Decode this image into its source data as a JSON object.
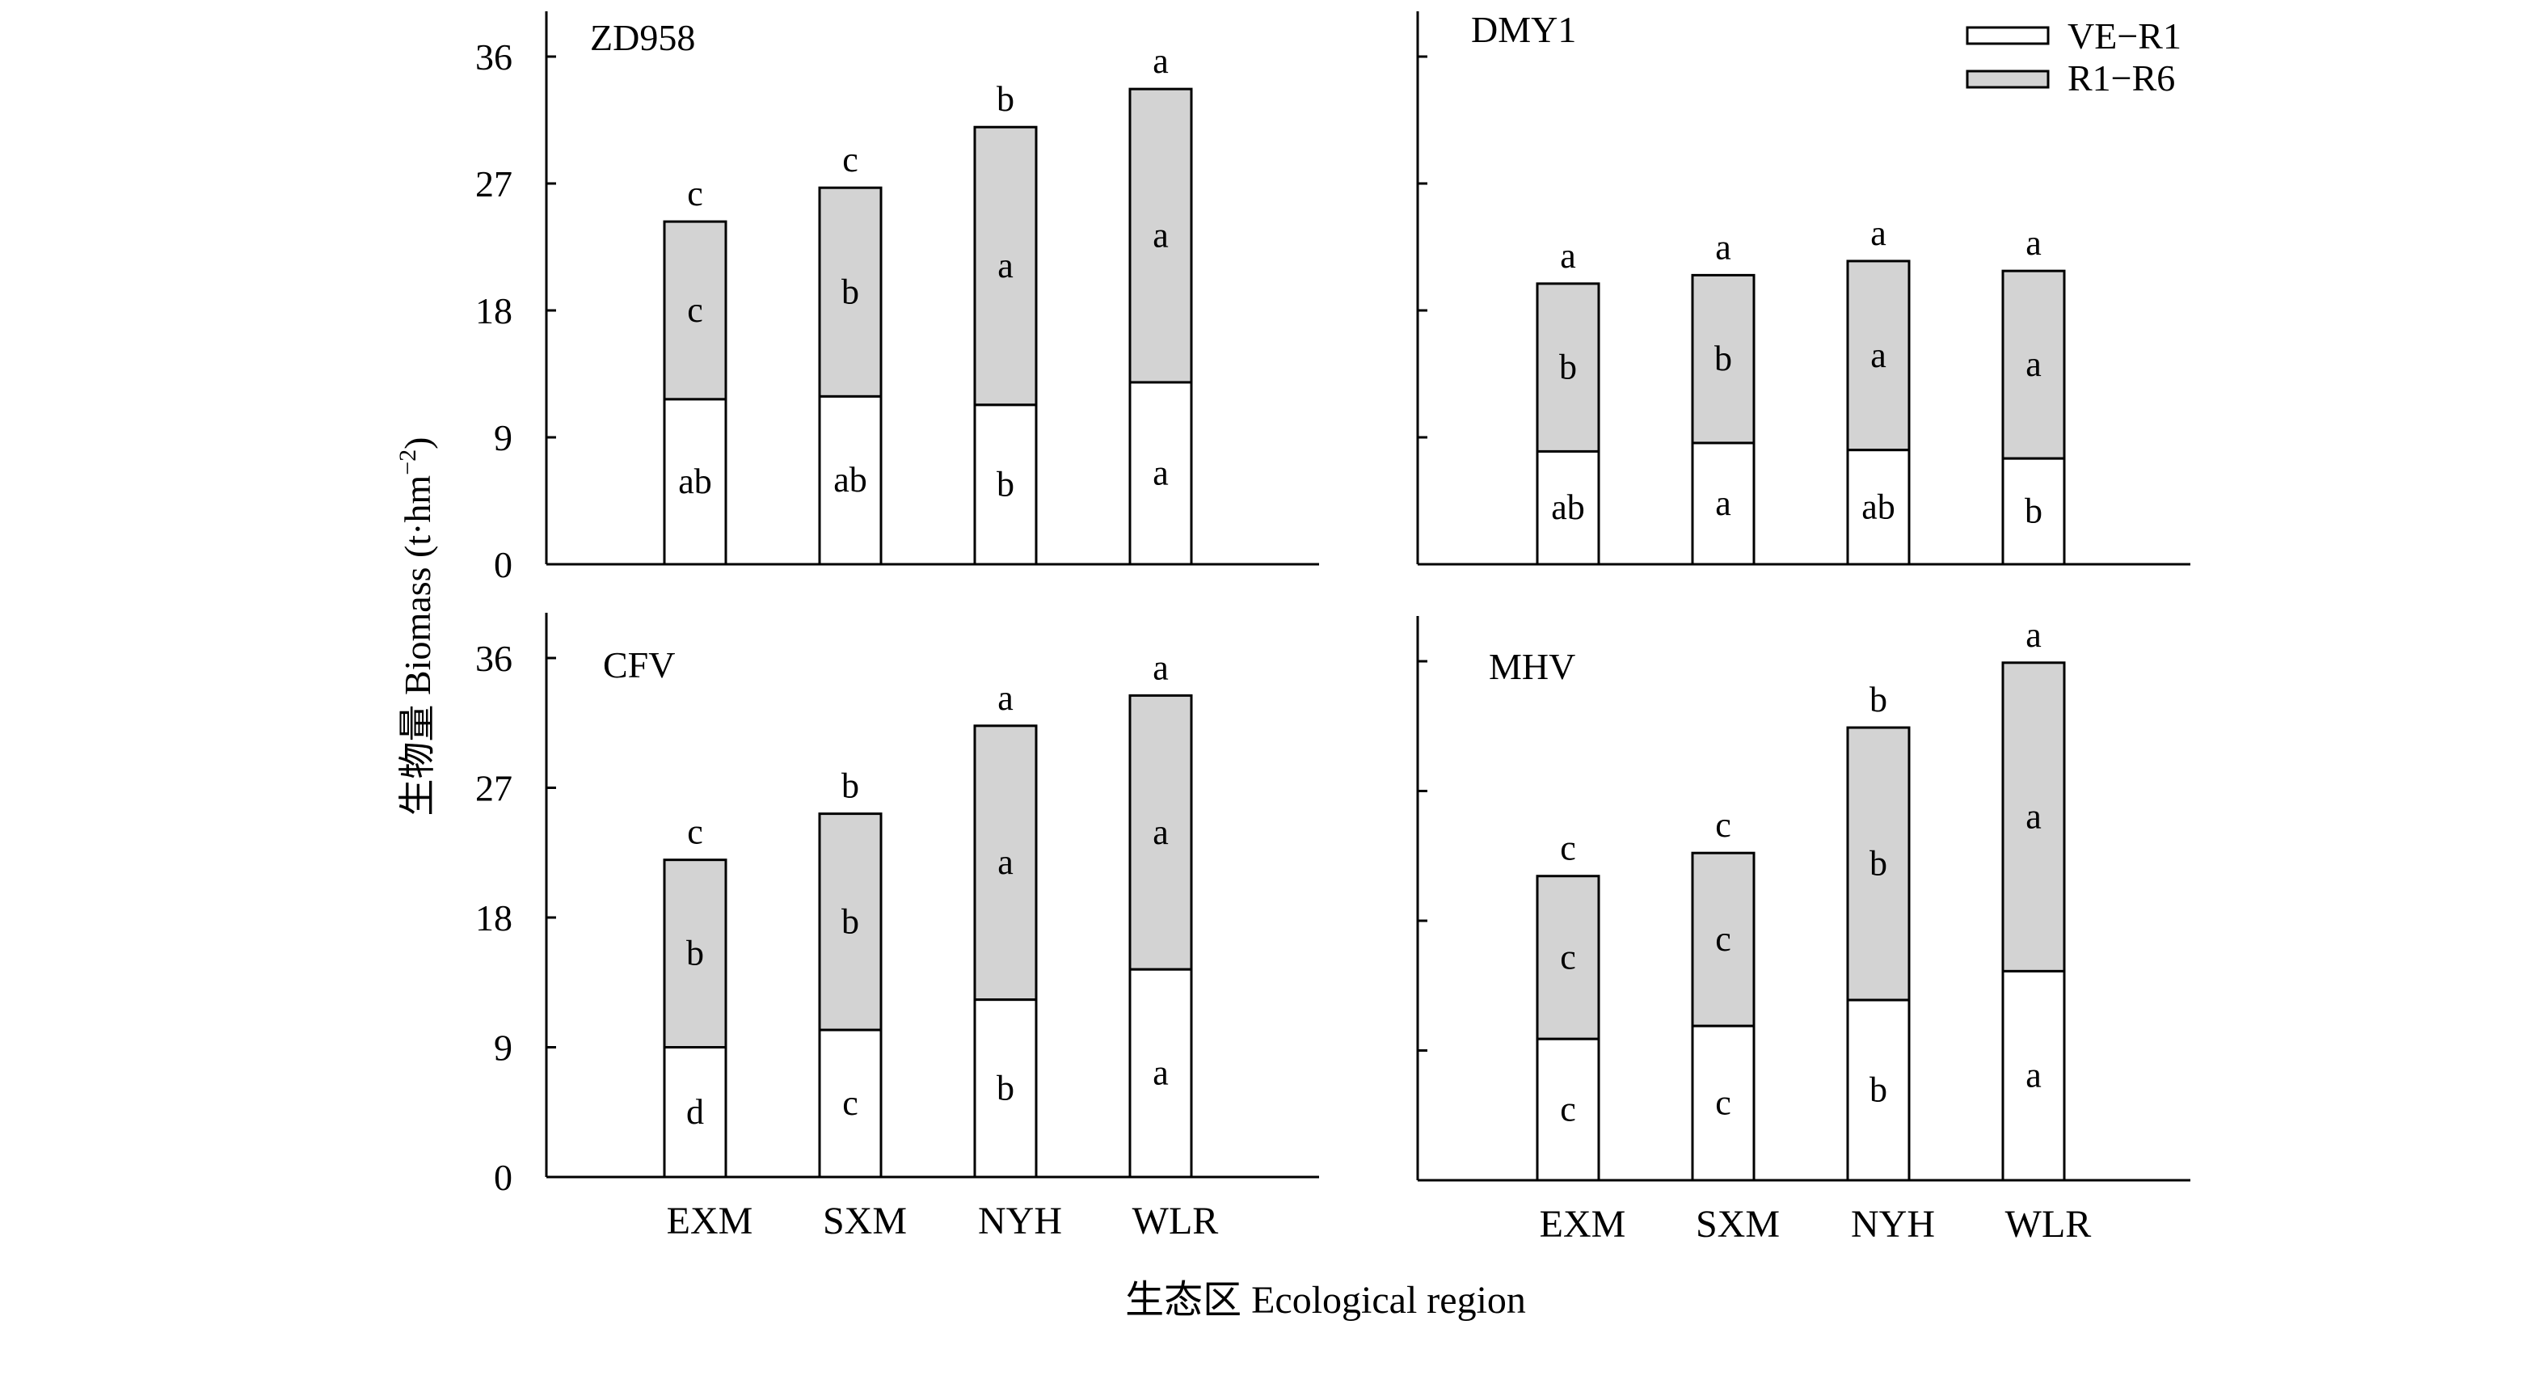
{
  "figure": {
    "ylabel": "生物量 Biomass (t·hm",
    "ylabel_sup": "−2",
    "ylabel_close": ")",
    "xlabel": "生态区 Ecological region",
    "legend": [
      {
        "label": "VE−R1",
        "color": "#ffffff"
      },
      {
        "label": "R1−R6",
        "color": "#d3d3d3"
      }
    ],
    "y_ticks": [
      "0",
      "9",
      "18",
      "27",
      "36"
    ]
  },
  "chart_data": [
    {
      "type": "bar",
      "title": "ZD958",
      "categories": [
        "EXM",
        "SXM",
        "NYH",
        "WLR"
      ],
      "ylim": [
        0,
        40
      ],
      "stacked": true,
      "series": [
        {
          "name": "VE−R1",
          "values": [
            11.7,
            11.9,
            11.3,
            12.9
          ],
          "letters": [
            "ab",
            "ab",
            "b",
            "a"
          ]
        },
        {
          "name": "R1−R6",
          "values": [
            12.6,
            14.8,
            19.7,
            20.8
          ],
          "letters": [
            "c",
            "b",
            "a",
            "a"
          ]
        }
      ],
      "total_letters": [
        "c",
        "c",
        "b",
        "a"
      ]
    },
    {
      "type": "bar",
      "title": "DMY1",
      "categories": [
        "EXM",
        "SXM",
        "NYH",
        "WLR"
      ],
      "ylim": [
        0,
        40
      ],
      "stacked": true,
      "series": [
        {
          "name": "VE−R1",
          "values": [
            8.0,
            8.6,
            8.1,
            7.5
          ],
          "letters": [
            "ab",
            "a",
            "ab",
            "b"
          ]
        },
        {
          "name": "R1−R6",
          "values": [
            11.9,
            11.9,
            13.4,
            13.3
          ],
          "letters": [
            "b",
            "b",
            "a",
            "a"
          ]
        }
      ],
      "total_letters": [
        "a",
        "a",
        "a",
        "a"
      ]
    },
    {
      "type": "bar",
      "title": "CFV",
      "categories": [
        "EXM",
        "SXM",
        "NYH",
        "WLR"
      ],
      "ylim": [
        0,
        40
      ],
      "stacked": true,
      "series": [
        {
          "name": "VE−R1",
          "values": [
            9.0,
            10.2,
            12.3,
            14.4
          ],
          "letters": [
            "d",
            "c",
            "b",
            "a"
          ]
        },
        {
          "name": "R1−R6",
          "values": [
            13.0,
            15.0,
            19.0,
            19.0
          ],
          "letters": [
            "b",
            "b",
            "a",
            "a"
          ]
        }
      ],
      "total_letters": [
        "c",
        "b",
        "a",
        "a"
      ]
    },
    {
      "type": "bar",
      "title": "MHV",
      "categories": [
        "EXM",
        "SXM",
        "NYH",
        "WLR"
      ],
      "ylim": [
        0,
        40
      ],
      "stacked": true,
      "series": [
        {
          "name": "VE−R1",
          "values": [
            9.8,
            10.7,
            12.5,
            14.5
          ],
          "letters": [
            "c",
            "c",
            "b",
            "a"
          ]
        },
        {
          "name": "R1−R6",
          "values": [
            11.3,
            12.0,
            18.9,
            21.4
          ],
          "letters": [
            "c",
            "c",
            "b",
            "a"
          ]
        }
      ],
      "total_letters": [
        "c",
        "c",
        "b",
        "a"
      ]
    }
  ]
}
